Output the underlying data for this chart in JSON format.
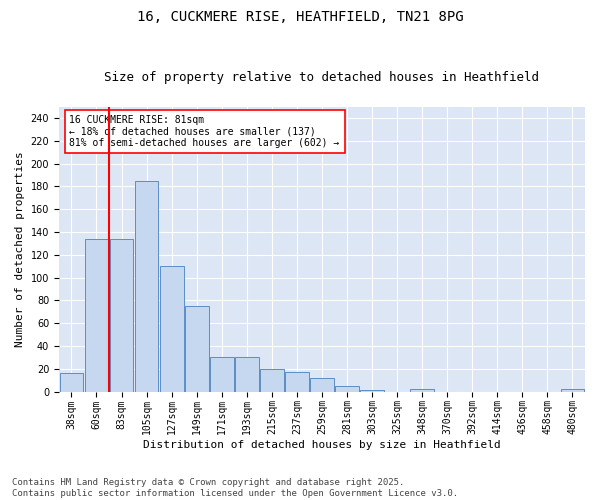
{
  "title1": "16, CUCKMERE RISE, HEATHFIELD, TN21 8PG",
  "title2": "Size of property relative to detached houses in Heathfield",
  "xlabel": "Distribution of detached houses by size in Heathfield",
  "ylabel": "Number of detached properties",
  "bins": [
    "38sqm",
    "60sqm",
    "83sqm",
    "105sqm",
    "127sqm",
    "149sqm",
    "171sqm",
    "193sqm",
    "215sqm",
    "237sqm",
    "259sqm",
    "281sqm",
    "303sqm",
    "325sqm",
    "348sqm",
    "370sqm",
    "392sqm",
    "414sqm",
    "436sqm",
    "458sqm",
    "480sqm"
  ],
  "values": [
    16,
    134,
    134,
    185,
    110,
    75,
    30,
    30,
    20,
    17,
    12,
    5,
    1,
    0,
    2,
    0,
    0,
    0,
    0,
    0,
    2
  ],
  "bar_color": "#c5d8f0",
  "bar_edge_color": "#5b8ec4",
  "red_line_color": "red",
  "red_line_bin": 2,
  "annotation_text": "16 CUCKMERE RISE: 81sqm\n← 18% of detached houses are smaller (137)\n81% of semi-detached houses are larger (602) →",
  "annotation_box_color": "white",
  "annotation_box_edge_color": "red",
  "ylim": [
    0,
    250
  ],
  "yticks": [
    0,
    20,
    40,
    60,
    80,
    100,
    120,
    140,
    160,
    180,
    200,
    220,
    240
  ],
  "background_color": "#dce6f5",
  "footer": "Contains HM Land Registry data © Crown copyright and database right 2025.\nContains public sector information licensed under the Open Government Licence v3.0.",
  "footer_fontsize": 6.5,
  "title_fontsize": 10,
  "subtitle_fontsize": 9,
  "axis_label_fontsize": 8,
  "tick_fontsize": 7,
  "annotation_fontsize": 7
}
